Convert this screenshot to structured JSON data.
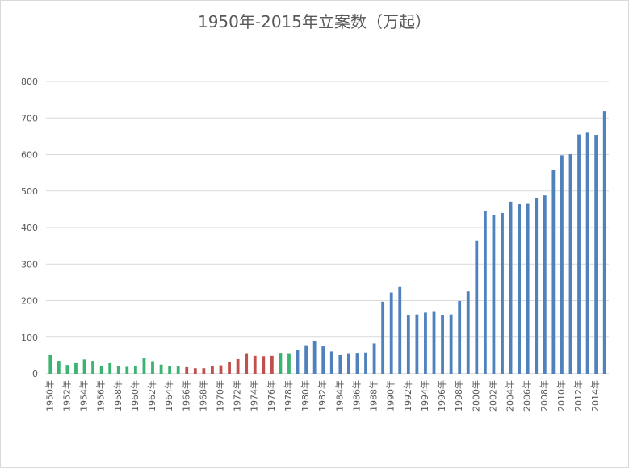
{
  "chart_data": {
    "type": "bar",
    "title": "1950年-2015年立案数（万起）",
    "ylim": [
      0,
      800
    ],
    "y_ticks": [
      0,
      100,
      200,
      300,
      400,
      500,
      600,
      700,
      800
    ],
    "grid": true,
    "categories": [
      "1950年",
      "1951年",
      "1952年",
      "1953年",
      "1954年",
      "1955年",
      "1956年",
      "1957年",
      "1958年",
      "1959年",
      "1960年",
      "1961年",
      "1962年",
      "1963年",
      "1964年",
      "1965年",
      "1966年",
      "1967年",
      "1968年",
      "1969年",
      "1970年",
      "1971年",
      "1972年",
      "1973年",
      "1974年",
      "1975年",
      "1976年",
      "1977年",
      "1978年",
      "1979年",
      "1980年",
      "1981年",
      "1982年",
      "1983年",
      "1984年",
      "1985年",
      "1986年",
      "1987年",
      "1988年",
      "1989年",
      "1990年",
      "1991年",
      "1992年",
      "1993年",
      "1994年",
      "1995年",
      "1996年",
      "1997年",
      "1998年",
      "1999年",
      "2000年",
      "2001年",
      "2002年",
      "2003年",
      "2004年",
      "2005年",
      "2006年",
      "2007年",
      "2008年",
      "2009年",
      "2010年",
      "2011年",
      "2012年",
      "2013年",
      "2014年",
      "2015年"
    ],
    "x_tick_labels": [
      "1950年",
      "1952年",
      "1954年",
      "1956年",
      "1958年",
      "1960年",
      "1962年",
      "1964年",
      "1966年",
      "1968年",
      "1970年",
      "1972年",
      "1974年",
      "1976年",
      "1978年",
      "1980年",
      "1982年",
      "1984年",
      "1986年",
      "1988年",
      "1990年",
      "1992年",
      "1994年",
      "1996年",
      "1998年",
      "2000年",
      "2002年",
      "2004年",
      "2006年",
      "2008年",
      "2010年",
      "2012年",
      "2014年"
    ],
    "values": [
      51,
      33,
      24,
      29,
      39,
      33,
      21,
      29,
      20,
      19,
      22,
      42,
      32,
      25,
      22,
      22,
      18,
      15,
      15,
      20,
      23,
      31,
      40,
      54,
      49,
      48,
      49,
      55,
      54,
      64,
      76,
      89,
      75,
      61,
      51,
      54,
      55,
      58,
      83,
      197,
      222,
      237,
      159,
      162,
      167,
      169,
      160,
      162,
      199,
      225,
      363,
      446,
      434,
      440,
      471,
      464,
      465,
      480,
      488,
      557,
      598,
      601,
      655,
      660,
      654,
      718
    ],
    "colors": [
      "#3cb371",
      "#3cb371",
      "#3cb371",
      "#3cb371",
      "#3cb371",
      "#3cb371",
      "#3cb371",
      "#3cb371",
      "#3cb371",
      "#3cb371",
      "#3cb371",
      "#3cb371",
      "#3cb371",
      "#3cb371",
      "#3cb371",
      "#3cb371",
      "#c0504d",
      "#c0504d",
      "#c0504d",
      "#c0504d",
      "#c0504d",
      "#c0504d",
      "#c0504d",
      "#c0504d",
      "#c0504d",
      "#c0504d",
      "#c0504d",
      "#3cb371",
      "#3cb371",
      "#4f81bd",
      "#4f81bd",
      "#4f81bd",
      "#4f81bd",
      "#4f81bd",
      "#4f81bd",
      "#4f81bd",
      "#4f81bd",
      "#4f81bd",
      "#4f81bd",
      "#4f81bd",
      "#4f81bd",
      "#4f81bd",
      "#4f81bd",
      "#4f81bd",
      "#4f81bd",
      "#4f81bd",
      "#4f81bd",
      "#4f81bd",
      "#4f81bd",
      "#4f81bd",
      "#4f81bd",
      "#4f81bd",
      "#4f81bd",
      "#4f81bd",
      "#4f81bd",
      "#4f81bd",
      "#4f81bd",
      "#4f81bd",
      "#4f81bd",
      "#4f81bd",
      "#4f81bd",
      "#4f81bd",
      "#4f81bd",
      "#4f81bd",
      "#4f81bd",
      "#4f81bd"
    ]
  }
}
